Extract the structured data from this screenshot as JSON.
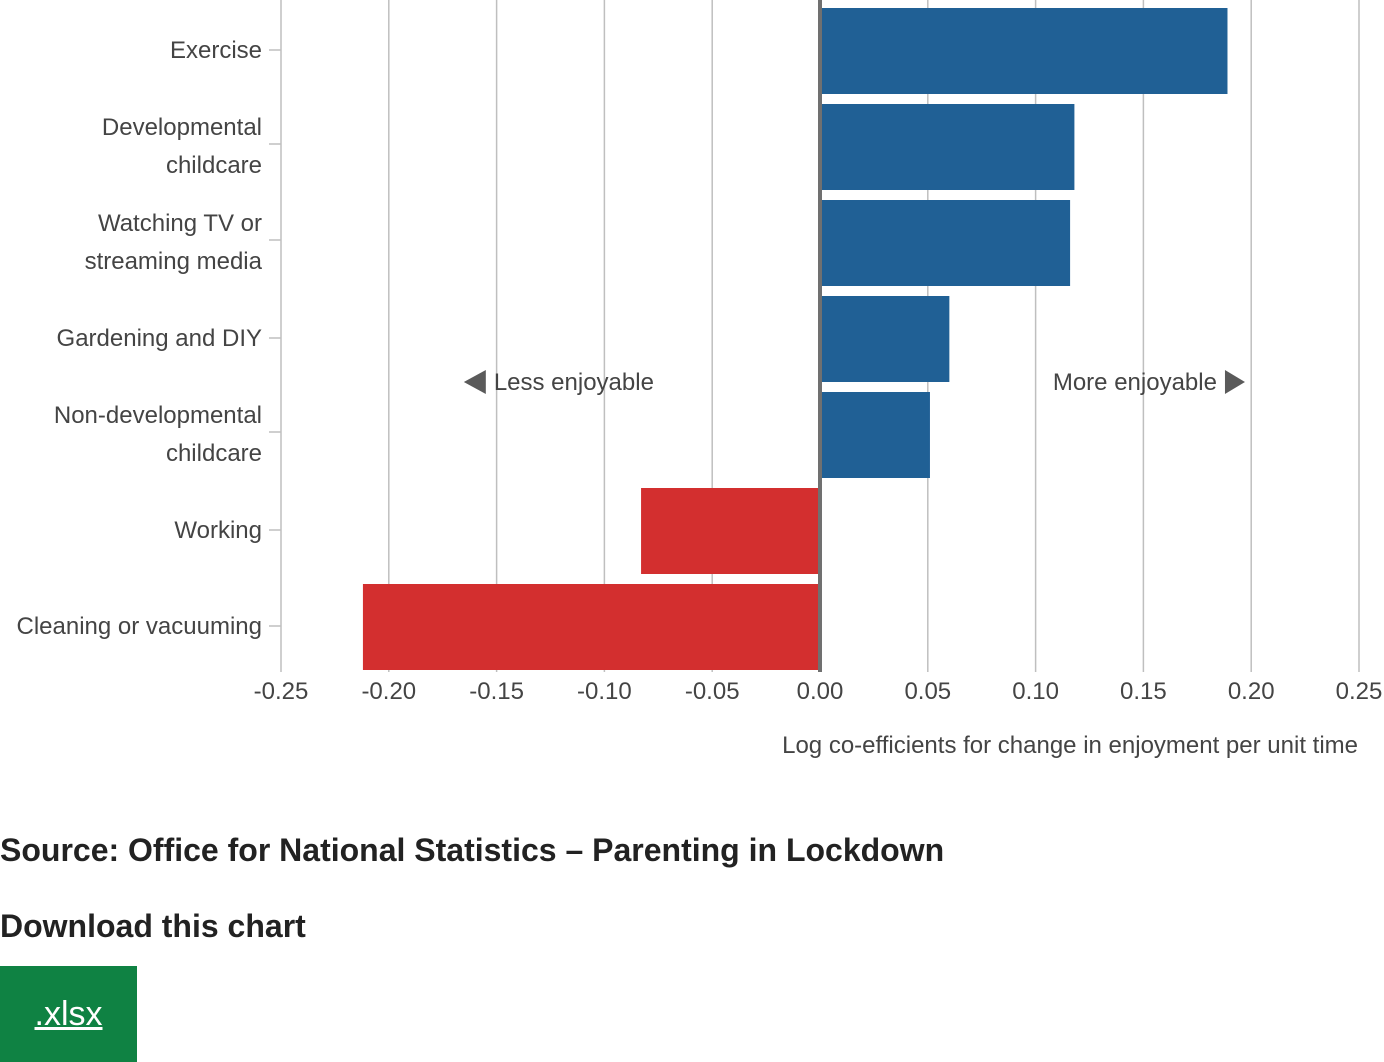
{
  "chart_data": {
    "type": "bar",
    "orientation": "horizontal",
    "categories": [
      [
        "Exercise"
      ],
      [
        "Developmental",
        "childcare"
      ],
      [
        "Watching TV or",
        "streaming media"
      ],
      [
        "Gardening and DIY"
      ],
      [
        "Non-developmental",
        "childcare"
      ],
      [
        "Working"
      ],
      [
        "Cleaning or vacuuming"
      ]
    ],
    "values": [
      0.189,
      0.118,
      0.116,
      0.06,
      0.051,
      -0.083,
      -0.212
    ],
    "xlim": [
      -0.25,
      0.25
    ],
    "xticks": [
      -0.25,
      -0.2,
      -0.15,
      -0.1,
      -0.05,
      0,
      0.05,
      0.1,
      0.15,
      0.2,
      0.25
    ],
    "xtick_labels": [
      "-0.25",
      "-0.20",
      "-0.15",
      "-0.10",
      "-0.05",
      "0.00",
      "0.05",
      "0.10",
      "0.15",
      "0.20",
      "0.25"
    ],
    "xlabel": "Log co-efficients for change in enjoyment per unit time",
    "grid": true,
    "colors": {
      "positive": "#206095",
      "negative": "#d32f2f"
    },
    "annotations": [
      {
        "text": "Less enjoyable",
        "direction": "left",
        "x": -0.155
      },
      {
        "text": "More enjoyable",
        "direction": "right",
        "x": 0.108
      }
    ]
  },
  "source": "Source: Office for National Statistics – Parenting in Lockdown",
  "download": {
    "heading": "Download this chart",
    "button_label": ".xlsx",
    "button_color": "#0f8243"
  }
}
